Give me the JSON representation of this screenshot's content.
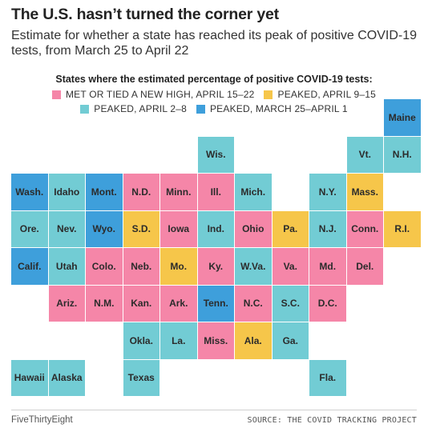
{
  "header": {
    "title": "The U.S. hasn’t turned the corner yet",
    "subtitle": "Estimate for whether a state has reached its peak of positive COVID-19 tests, from March 25 to April 22"
  },
  "legend": {
    "title": "States where the estimated percentage of positive COVID-19 tests:",
    "items": [
      {
        "label": "MET OR TIED A NEW HIGH, APRIL 15–22",
        "color": "#f586a8"
      },
      {
        "label": "PEAKED, APRIL 9–15",
        "color": "#f6c64a"
      },
      {
        "label": "PEAKED, APRIL 2–8",
        "color": "#72ccd4"
      },
      {
        "label": "PEAKED, MARCH 25–APRIL 1",
        "color": "#3e9fdb"
      }
    ]
  },
  "footer": {
    "brand": "FiveThirtyEight",
    "source": "SOURCE: THE COVID TRACKING PROJECT"
  },
  "chart_data": {
    "type": "table",
    "grid": false,
    "categories": [
      "MET OR TIED A NEW HIGH, APRIL 15–22",
      "PEAKED, APRIL 9–15",
      "PEAKED, APRIL 2–8",
      "PEAKED, MARCH 25–APRIL 1"
    ],
    "states": [
      {
        "label": "Maine",
        "row": 0,
        "col": 10,
        "category": 3
      },
      {
        "label": "Wis.",
        "row": 1,
        "col": 5,
        "category": 2
      },
      {
        "label": "Vt.",
        "row": 1,
        "col": 9,
        "category": 2
      },
      {
        "label": "N.H.",
        "row": 1,
        "col": 10,
        "category": 2
      },
      {
        "label": "Wash.",
        "row": 2,
        "col": 0,
        "category": 3
      },
      {
        "label": "Idaho",
        "row": 2,
        "col": 1,
        "category": 2
      },
      {
        "label": "Mont.",
        "row": 2,
        "col": 2,
        "category": 3
      },
      {
        "label": "N.D.",
        "row": 2,
        "col": 3,
        "category": 0
      },
      {
        "label": "Minn.",
        "row": 2,
        "col": 4,
        "category": 0
      },
      {
        "label": "Ill.",
        "row": 2,
        "col": 5,
        "category": 0
      },
      {
        "label": "Mich.",
        "row": 2,
        "col": 6,
        "category": 2
      },
      {
        "label": "N.Y.",
        "row": 2,
        "col": 8,
        "category": 2
      },
      {
        "label": "Mass.",
        "row": 2,
        "col": 9,
        "category": 1
      },
      {
        "label": "Ore.",
        "row": 3,
        "col": 0,
        "category": 2
      },
      {
        "label": "Nev.",
        "row": 3,
        "col": 1,
        "category": 2
      },
      {
        "label": "Wyo.",
        "row": 3,
        "col": 2,
        "category": 3
      },
      {
        "label": "S.D.",
        "row": 3,
        "col": 3,
        "category": 1
      },
      {
        "label": "Iowa",
        "row": 3,
        "col": 4,
        "category": 0
      },
      {
        "label": "Ind.",
        "row": 3,
        "col": 5,
        "category": 2
      },
      {
        "label": "Ohio",
        "row": 3,
        "col": 6,
        "category": 0
      },
      {
        "label": "Pa.",
        "row": 3,
        "col": 7,
        "category": 1
      },
      {
        "label": "N.J.",
        "row": 3,
        "col": 8,
        "category": 2
      },
      {
        "label": "Conn.",
        "row": 3,
        "col": 9,
        "category": 0
      },
      {
        "label": "R.I.",
        "row": 3,
        "col": 10,
        "category": 1
      },
      {
        "label": "Calif.",
        "row": 4,
        "col": 0,
        "category": 3
      },
      {
        "label": "Utah",
        "row": 4,
        "col": 1,
        "category": 2
      },
      {
        "label": "Colo.",
        "row": 4,
        "col": 2,
        "category": 0
      },
      {
        "label": "Neb.",
        "row": 4,
        "col": 3,
        "category": 0
      },
      {
        "label": "Mo.",
        "row": 4,
        "col": 4,
        "category": 1
      },
      {
        "label": "Ky.",
        "row": 4,
        "col": 5,
        "category": 0
      },
      {
        "label": "W.Va.",
        "row": 4,
        "col": 6,
        "category": 2
      },
      {
        "label": "Va.",
        "row": 4,
        "col": 7,
        "category": 0
      },
      {
        "label": "Md.",
        "row": 4,
        "col": 8,
        "category": 0
      },
      {
        "label": "Del.",
        "row": 4,
        "col": 9,
        "category": 0
      },
      {
        "label": "Ariz.",
        "row": 5,
        "col": 1,
        "category": 0
      },
      {
        "label": "N.M.",
        "row": 5,
        "col": 2,
        "category": 0
      },
      {
        "label": "Kan.",
        "row": 5,
        "col": 3,
        "category": 0
      },
      {
        "label": "Ark.",
        "row": 5,
        "col": 4,
        "category": 0
      },
      {
        "label": "Tenn.",
        "row": 5,
        "col": 5,
        "category": 3
      },
      {
        "label": "N.C.",
        "row": 5,
        "col": 6,
        "category": 0
      },
      {
        "label": "S.C.",
        "row": 5,
        "col": 7,
        "category": 2
      },
      {
        "label": "D.C.",
        "row": 5,
        "col": 8,
        "category": 0
      },
      {
        "label": "Okla.",
        "row": 6,
        "col": 3,
        "category": 2
      },
      {
        "label": "La.",
        "row": 6,
        "col": 4,
        "category": 2
      },
      {
        "label": "Miss.",
        "row": 6,
        "col": 5,
        "category": 0
      },
      {
        "label": "Ala.",
        "row": 6,
        "col": 6,
        "category": 1
      },
      {
        "label": "Ga.",
        "row": 6,
        "col": 7,
        "category": 2
      },
      {
        "label": "Hawaii",
        "row": 7,
        "col": 0,
        "category": 2
      },
      {
        "label": "Alaska",
        "row": 7,
        "col": 1,
        "category": 2
      },
      {
        "label": "Texas",
        "row": 7,
        "col": 3,
        "category": 2
      },
      {
        "label": "Fla.",
        "row": 7,
        "col": 8,
        "category": 2
      }
    ]
  }
}
